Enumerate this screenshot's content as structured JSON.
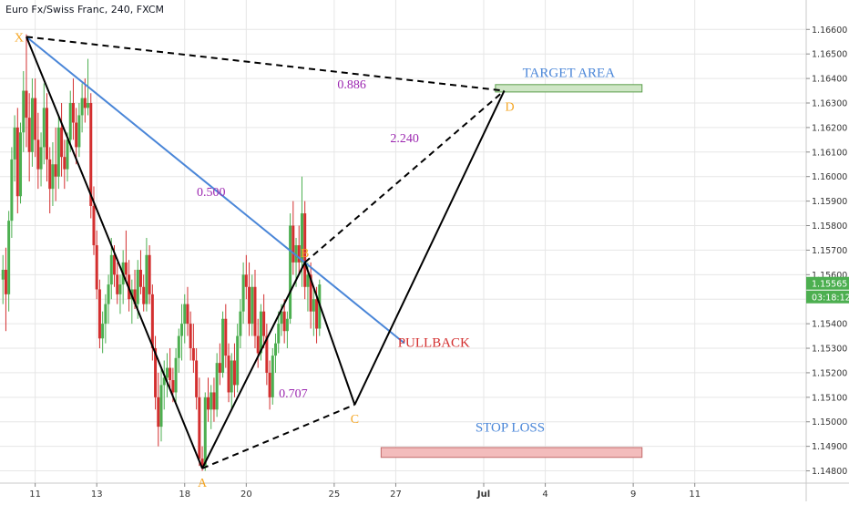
{
  "chart_data": {
    "type": "candlestick",
    "title": "Euro Fx/Swiss Franc, 240, FXCM",
    "y_axis": {
      "position": "right",
      "range": [
        1.1475,
        1.1672
      ],
      "ticks": [
        "1.16600",
        "1.16500",
        "1.16400",
        "1.16300",
        "1.16200",
        "1.16100",
        "1.16000",
        "1.15900",
        "1.15800",
        "1.15700",
        "1.15600",
        "1.15500",
        "1.15400",
        "1.15300",
        "1.15200",
        "1.15100",
        "1.15000",
        "1.14900",
        "1.14800"
      ]
    },
    "x_axis": {
      "range": [
        0,
        275
      ],
      "ticks": [
        {
          "label": "11",
          "x": 12
        },
        {
          "label": "13",
          "x": 33
        },
        {
          "label": "18",
          "x": 63
        },
        {
          "label": "20",
          "x": 84
        },
        {
          "label": "25",
          "x": 114
        },
        {
          "label": "27",
          "x": 135
        },
        {
          "label": "Jul",
          "x": 165
        },
        {
          "label": "4",
          "x": 186
        },
        {
          "label": "9",
          "x": 216
        },
        {
          "label": "11",
          "x": 237
        }
      ]
    },
    "price_label": {
      "value": "1.15565",
      "countdown": "03:18:12"
    },
    "colors": {
      "up": "#4caf50",
      "down": "#d32f2f",
      "bg": "#ffffff",
      "grid": "#e6e6e6",
      "pattern": "#000000",
      "xb_line": "#4a86d8",
      "point": "#f5a623",
      "ratio": "#9c27b0",
      "target": "#4a86d8",
      "pullback": "#d32f2f",
      "price_tag": "#4caf50",
      "countdown_tag": "#4caf50"
    },
    "candles": [
      [
        1.1558,
        1.1568,
        1.1548,
        1.1562
      ],
      [
        1.1562,
        1.1571,
        1.1537,
        1.1552
      ],
      [
        1.1552,
        1.1586,
        1.1545,
        1.1582
      ],
      [
        1.1582,
        1.1612,
        1.1575,
        1.1607
      ],
      [
        1.1607,
        1.1625,
        1.1598,
        1.162
      ],
      [
        1.162,
        1.1628,
        1.1585,
        1.1592
      ],
      [
        1.1592,
        1.1622,
        1.1589,
        1.1618
      ],
      [
        1.1618,
        1.1643,
        1.161,
        1.1635
      ],
      [
        1.1635,
        1.1658,
        1.1612,
        1.1624
      ],
      [
        1.1624,
        1.1634,
        1.1598,
        1.161
      ],
      [
        1.161,
        1.164,
        1.1604,
        1.1632
      ],
      [
        1.1632,
        1.164,
        1.1608,
        1.1615
      ],
      [
        1.1615,
        1.1626,
        1.1595,
        1.1603
      ],
      [
        1.1603,
        1.1618,
        1.1596,
        1.1612
      ],
      [
        1.1612,
        1.1638,
        1.1605,
        1.1628
      ],
      [
        1.1628,
        1.1634,
        1.1598,
        1.1607
      ],
      [
        1.1607,
        1.1612,
        1.1585,
        1.1595
      ],
      [
        1.1595,
        1.1614,
        1.1588,
        1.1605
      ],
      [
        1.1605,
        1.162,
        1.159,
        1.16
      ],
      [
        1.16,
        1.1625,
        1.1595,
        1.162
      ],
      [
        1.162,
        1.163,
        1.16,
        1.1608
      ],
      [
        1.1608,
        1.1615,
        1.1595,
        1.1603
      ],
      [
        1.1603,
        1.1618,
        1.1598,
        1.1615
      ],
      [
        1.1615,
        1.1635,
        1.161,
        1.163
      ],
      [
        1.163,
        1.164,
        1.1615,
        1.1622
      ],
      [
        1.1622,
        1.1628,
        1.1605,
        1.1612
      ],
      [
        1.1612,
        1.163,
        1.1608,
        1.1625
      ],
      [
        1.1625,
        1.1638,
        1.1618,
        1.1632
      ],
      [
        1.1632,
        1.164,
        1.1622,
        1.1628
      ],
      [
        1.1628,
        1.1648,
        1.1625,
        1.163
      ],
      [
        1.163,
        1.1634,
        1.1583,
        1.1588
      ],
      [
        1.1588,
        1.1596,
        1.1568,
        1.1572
      ],
      [
        1.1572,
        1.1578,
        1.155,
        1.1554
      ],
      [
        1.1554,
        1.1558,
        1.153,
        1.1534
      ],
      [
        1.1534,
        1.1545,
        1.1528,
        1.154
      ],
      [
        1.154,
        1.1552,
        1.1532,
        1.1548
      ],
      [
        1.1548,
        1.156,
        1.154,
        1.1556
      ],
      [
        1.1556,
        1.1575,
        1.155,
        1.1568
      ],
      [
        1.1568,
        1.1572,
        1.1555,
        1.156
      ],
      [
        1.156,
        1.1565,
        1.1548,
        1.1552
      ],
      [
        1.1552,
        1.156,
        1.1544,
        1.1556
      ],
      [
        1.1556,
        1.157,
        1.1548,
        1.1565
      ],
      [
        1.1565,
        1.1578,
        1.1558,
        1.156
      ],
      [
        1.156,
        1.1566,
        1.1545,
        1.155
      ],
      [
        1.155,
        1.1558,
        1.154,
        1.1554
      ],
      [
        1.1554,
        1.1562,
        1.1546,
        1.1548
      ],
      [
        1.1548,
        1.1566,
        1.1542,
        1.1562
      ],
      [
        1.1562,
        1.157,
        1.1552,
        1.1555
      ],
      [
        1.1555,
        1.156,
        1.1545,
        1.1548
      ],
      [
        1.1548,
        1.1575,
        1.1545,
        1.1568
      ],
      [
        1.1568,
        1.1572,
        1.1548,
        1.1552
      ],
      [
        1.1552,
        1.1556,
        1.1525,
        1.153
      ],
      [
        1.153,
        1.1535,
        1.1505,
        1.151
      ],
      [
        1.151,
        1.152,
        1.149,
        1.1498
      ],
      [
        1.1498,
        1.1522,
        1.1492,
        1.1515
      ],
      [
        1.1515,
        1.1525,
        1.1505,
        1.1518
      ],
      [
        1.1518,
        1.1528,
        1.151,
        1.1522
      ],
      [
        1.1522,
        1.153,
        1.1514,
        1.1517
      ],
      [
        1.1517,
        1.1522,
        1.1508,
        1.1512
      ],
      [
        1.1512,
        1.153,
        1.1508,
        1.1526
      ],
      [
        1.1526,
        1.1538,
        1.152,
        1.1535
      ],
      [
        1.1535,
        1.1548,
        1.1525,
        1.154
      ],
      [
        1.154,
        1.1552,
        1.1532,
        1.1548
      ],
      [
        1.1548,
        1.1555,
        1.1535,
        1.154
      ],
      [
        1.154,
        1.1545,
        1.1525,
        1.153
      ],
      [
        1.153,
        1.154,
        1.152,
        1.1525
      ],
      [
        1.1525,
        1.153,
        1.1505,
        1.151
      ],
      [
        1.151,
        1.1518,
        1.1482,
        1.1485
      ],
      [
        1.1485,
        1.149,
        1.148,
        1.1482
      ],
      [
        1.1482,
        1.1512,
        1.148,
        1.151
      ],
      [
        1.151,
        1.1518,
        1.15,
        1.1505
      ],
      [
        1.1505,
        1.1515,
        1.1497,
        1.1512
      ],
      [
        1.1512,
        1.1518,
        1.15,
        1.1505
      ],
      [
        1.1505,
        1.1528,
        1.1502,
        1.1524
      ],
      [
        1.1524,
        1.1532,
        1.1515,
        1.152
      ],
      [
        1.152,
        1.1545,
        1.1518,
        1.1542
      ],
      [
        1.1542,
        1.1548,
        1.1522,
        1.1527
      ],
      [
        1.1527,
        1.1532,
        1.1508,
        1.1512
      ],
      [
        1.1512,
        1.1528,
        1.1505,
        1.1525
      ],
      [
        1.1525,
        1.1532,
        1.151,
        1.1515
      ],
      [
        1.1515,
        1.154,
        1.1512,
        1.1535
      ],
      [
        1.1535,
        1.155,
        1.153,
        1.1545
      ],
      [
        1.1545,
        1.1565,
        1.154,
        1.156
      ],
      [
        1.156,
        1.1568,
        1.155,
        1.1555
      ],
      [
        1.1555,
        1.1565,
        1.1535,
        1.154
      ],
      [
        1.154,
        1.156,
        1.1535,
        1.1555
      ],
      [
        1.1555,
        1.1562,
        1.153,
        1.1535
      ],
      [
        1.1535,
        1.1542,
        1.1522,
        1.1528
      ],
      [
        1.1528,
        1.1548,
        1.1525,
        1.1545
      ],
      [
        1.1545,
        1.1552,
        1.153,
        1.1535
      ],
      [
        1.1535,
        1.154,
        1.1515,
        1.152
      ],
      [
        1.152,
        1.1525,
        1.1505,
        1.151
      ],
      [
        1.151,
        1.153,
        1.1507,
        1.1527
      ],
      [
        1.1527,
        1.1536,
        1.152,
        1.1532
      ],
      [
        1.1532,
        1.1545,
        1.1528,
        1.154
      ],
      [
        1.154,
        1.1548,
        1.1535,
        1.1545
      ],
      [
        1.1545,
        1.155,
        1.1532,
        1.1537
      ],
      [
        1.1537,
        1.1545,
        1.153,
        1.1542
      ],
      [
        1.1542,
        1.1585,
        1.154,
        1.158
      ],
      [
        1.158,
        1.159,
        1.156,
        1.1565
      ],
      [
        1.1565,
        1.1575,
        1.1555,
        1.1572
      ],
      [
        1.1572,
        1.158,
        1.156,
        1.1565
      ],
      [
        1.1565,
        1.16,
        1.1555,
        1.1585
      ],
      [
        1.1585,
        1.159,
        1.155,
        1.1555
      ],
      [
        1.1555,
        1.1565,
        1.1545,
        1.156
      ],
      [
        1.156,
        1.1565,
        1.1538,
        1.1545
      ],
      [
        1.1545,
        1.1555,
        1.1535,
        1.155
      ],
      [
        1.155,
        1.1555,
        1.1532,
        1.1538
      ],
      [
        1.1538,
        1.1558,
        1.1535,
        1.1556
      ]
    ],
    "pattern": {
      "points": [
        {
          "name": "X",
          "x": 9,
          "y": 1.1657
        },
        {
          "name": "A",
          "x": 69,
          "y": 1.1481
        },
        {
          "name": "B",
          "x": 104,
          "y": 1.1565
        },
        {
          "name": "C",
          "x": 121,
          "y": 1.1507
        },
        {
          "name": "D",
          "x": 172,
          "y": 1.1635
        }
      ],
      "ratios": [
        {
          "label": "0.500",
          "x": 72,
          "y": 1.1592
        },
        {
          "label": "0.707",
          "x": 100,
          "y": 1.151
        },
        {
          "label": "2.240",
          "x": 138,
          "y": 1.1614
        },
        {
          "label": "0.886",
          "x": 120,
          "y": 1.1636
        }
      ],
      "xb_line": {
        "x1": 9,
        "y1": 1.1657,
        "x2": 138,
        "y2": 1.1532
      }
    },
    "zones": [
      {
        "label": "TARGET AREA",
        "x1": 169,
        "x2": 219,
        "y1": 1.16345,
        "y2": 1.16375,
        "fill": "#cfe6c6",
        "stroke": "#5a9e4a",
        "label_color": "#4a86d8",
        "label_x": 194,
        "label_y": 1.16405
      },
      {
        "label": "STOP LOSS",
        "x1": 130,
        "x2": 219,
        "y1": 1.14855,
        "y2": 1.14895,
        "fill": "#f3bcbc",
        "stroke": "#c26a6a",
        "label_color": "#4a86d8",
        "label_x": 174,
        "label_y": 1.1496
      }
    ],
    "annotations": [
      {
        "label": "PULLBACK",
        "x": 148,
        "y": 1.15305,
        "color": "#d32f2f"
      }
    ]
  }
}
